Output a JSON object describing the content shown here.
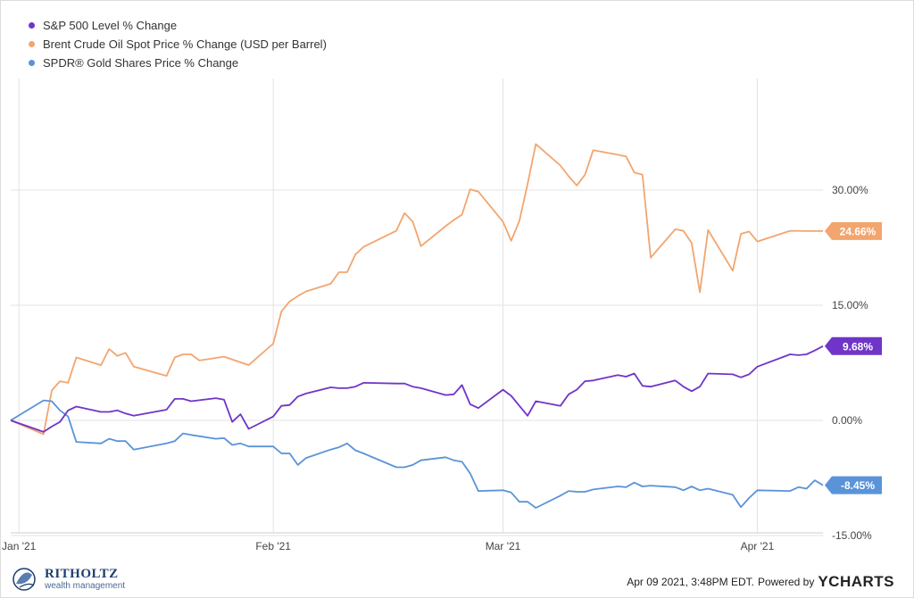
{
  "chart_data": {
    "type": "line",
    "x_type": "date",
    "xlim": [
      "2020-12-31",
      "2021-04-09"
    ],
    "ylim": [
      -15,
      41
    ],
    "grid": {
      "vertical": true,
      "horizontal": true
    },
    "legend_position": "top-left",
    "x_tick_labels": [
      {
        "date": "2021-01-01",
        "label": "Jan '21"
      },
      {
        "date": "2021-02-01",
        "label": "Feb '21"
      },
      {
        "date": "2021-03-01",
        "label": "Mar '21"
      },
      {
        "date": "2021-04-01",
        "label": "Apr '21"
      }
    ],
    "y_tick_labels": [
      {
        "value": 30,
        "label": "30.00%"
      },
      {
        "value": 15,
        "label": "15.00%"
      },
      {
        "value": 0,
        "label": "0.00%"
      },
      {
        "value": -15,
        "label": "-15.00%"
      }
    ],
    "series": [
      {
        "name": "S&P 500 Level % Change",
        "color": "#6f35c8",
        "end_label": "9.68%",
        "points": [
          [
            "2020-12-31",
            0
          ],
          [
            "2021-01-04",
            -1.5
          ],
          [
            "2021-01-05",
            -0.8
          ],
          [
            "2021-01-06",
            -0.2
          ],
          [
            "2021-01-07",
            1.3
          ],
          [
            "2021-01-08",
            1.8
          ],
          [
            "2021-01-11",
            1.1
          ],
          [
            "2021-01-12",
            1.1
          ],
          [
            "2021-01-13",
            1.3
          ],
          [
            "2021-01-14",
            0.9
          ],
          [
            "2021-01-15",
            0.6
          ],
          [
            "2021-01-19",
            1.4
          ],
          [
            "2021-01-20",
            2.8
          ],
          [
            "2021-01-21",
            2.8
          ],
          [
            "2021-01-22",
            2.5
          ],
          [
            "2021-01-25",
            2.9
          ],
          [
            "2021-01-26",
            2.7
          ],
          [
            "2021-01-27",
            -0.2
          ],
          [
            "2021-01-28",
            0.8
          ],
          [
            "2021-01-29",
            -1.1
          ],
          [
            "2021-02-01",
            0.5
          ],
          [
            "2021-02-02",
            1.9
          ],
          [
            "2021-02-03",
            2.0
          ],
          [
            "2021-02-04",
            3.1
          ],
          [
            "2021-02-05",
            3.5
          ],
          [
            "2021-02-08",
            4.3
          ],
          [
            "2021-02-09",
            4.2
          ],
          [
            "2021-02-10",
            4.2
          ],
          [
            "2021-02-11",
            4.4
          ],
          [
            "2021-02-12",
            4.9
          ],
          [
            "2021-02-16",
            4.8
          ],
          [
            "2021-02-17",
            4.8
          ],
          [
            "2021-02-18",
            4.4
          ],
          [
            "2021-02-19",
            4.2
          ],
          [
            "2021-02-22",
            3.3
          ],
          [
            "2021-02-23",
            3.4
          ],
          [
            "2021-02-24",
            4.6
          ],
          [
            "2021-02-25",
            2.1
          ],
          [
            "2021-02-26",
            1.6
          ],
          [
            "2021-03-01",
            4.0
          ],
          [
            "2021-03-02",
            3.2
          ],
          [
            "2021-03-03",
            1.9
          ],
          [
            "2021-03-04",
            0.6
          ],
          [
            "2021-03-05",
            2.5
          ],
          [
            "2021-03-08",
            1.9
          ],
          [
            "2021-03-09",
            3.4
          ],
          [
            "2021-03-10",
            4.0
          ],
          [
            "2021-03-11",
            5.1
          ],
          [
            "2021-03-12",
            5.2
          ],
          [
            "2021-03-15",
            5.9
          ],
          [
            "2021-03-16",
            5.7
          ],
          [
            "2021-03-17",
            6.1
          ],
          [
            "2021-03-18",
            4.5
          ],
          [
            "2021-03-19",
            4.4
          ],
          [
            "2021-03-22",
            5.2
          ],
          [
            "2021-03-23",
            4.4
          ],
          [
            "2021-03-24",
            3.8
          ],
          [
            "2021-03-25",
            4.4
          ],
          [
            "2021-03-26",
            6.1
          ],
          [
            "2021-03-29",
            6.0
          ],
          [
            "2021-03-30",
            5.6
          ],
          [
            "2021-03-31",
            6.0
          ],
          [
            "2021-04-01",
            7.0
          ],
          [
            "2021-04-05",
            8.6
          ],
          [
            "2021-04-06",
            8.5
          ],
          [
            "2021-04-07",
            8.6
          ],
          [
            "2021-04-08",
            9.1
          ],
          [
            "2021-04-09",
            9.68
          ]
        ]
      },
      {
        "name": "Brent Crude Oil Spot Price % Change (USD per Barrel)",
        "color": "#f2a56e",
        "end_label": "24.66%",
        "points": [
          [
            "2020-12-31",
            0
          ],
          [
            "2021-01-04",
            -1.8
          ],
          [
            "2021-01-05",
            3.9
          ],
          [
            "2021-01-06",
            5.1
          ],
          [
            "2021-01-07",
            4.9
          ],
          [
            "2021-01-08",
            8.2
          ],
          [
            "2021-01-11",
            7.2
          ],
          [
            "2021-01-12",
            9.3
          ],
          [
            "2021-01-13",
            8.4
          ],
          [
            "2021-01-14",
            8.8
          ],
          [
            "2021-01-15",
            7.0
          ],
          [
            "2021-01-19",
            5.8
          ],
          [
            "2021-01-20",
            8.2
          ],
          [
            "2021-01-21",
            8.6
          ],
          [
            "2021-01-22",
            8.6
          ],
          [
            "2021-01-23",
            7.8
          ],
          [
            "2021-01-26",
            8.3
          ],
          [
            "2021-01-29",
            7.2
          ],
          [
            "2021-02-01",
            10.0
          ],
          [
            "2021-02-02",
            14.2
          ],
          [
            "2021-02-03",
            15.5
          ],
          [
            "2021-02-04",
            16.2
          ],
          [
            "2021-02-05",
            16.8
          ],
          [
            "2021-02-08",
            17.8
          ],
          [
            "2021-02-09",
            19.3
          ],
          [
            "2021-02-10",
            19.3
          ],
          [
            "2021-02-11",
            21.6
          ],
          [
            "2021-02-12",
            22.6
          ],
          [
            "2021-02-16",
            24.7
          ],
          [
            "2021-02-17",
            27.0
          ],
          [
            "2021-02-18",
            25.9
          ],
          [
            "2021-02-19",
            22.7
          ],
          [
            "2021-02-22",
            25.3
          ],
          [
            "2021-02-23",
            26.1
          ],
          [
            "2021-02-24",
            26.8
          ],
          [
            "2021-02-25",
            30.1
          ],
          [
            "2021-02-26",
            29.8
          ],
          [
            "2021-03-01",
            25.9
          ],
          [
            "2021-03-02",
            23.4
          ],
          [
            "2021-03-03",
            26.0
          ],
          [
            "2021-03-04",
            30.8
          ],
          [
            "2021-03-05",
            36.0
          ],
          [
            "2021-03-08",
            33.2
          ],
          [
            "2021-03-09",
            31.8
          ],
          [
            "2021-03-10",
            30.6
          ],
          [
            "2021-03-11",
            32.0
          ],
          [
            "2021-03-12",
            35.2
          ],
          [
            "2021-03-15",
            34.6
          ],
          [
            "2021-03-16",
            34.4
          ],
          [
            "2021-03-17",
            32.3
          ],
          [
            "2021-03-18",
            32.0
          ],
          [
            "2021-03-19",
            21.2
          ],
          [
            "2021-03-22",
            24.9
          ],
          [
            "2021-03-23",
            24.7
          ],
          [
            "2021-03-24",
            23.1
          ],
          [
            "2021-03-25",
            16.7
          ],
          [
            "2021-03-26",
            24.8
          ],
          [
            "2021-03-29",
            19.5
          ],
          [
            "2021-03-30",
            24.3
          ],
          [
            "2021-03-31",
            24.6
          ],
          [
            "2021-04-01",
            23.3
          ],
          [
            "2021-04-05",
            24.7
          ],
          [
            "2021-04-07",
            24.66
          ],
          [
            "2021-04-09",
            24.66
          ]
        ]
      },
      {
        "name": "SPDR® Gold Shares Price % Change",
        "color": "#5a93d8",
        "end_label": "-8.45%",
        "points": [
          [
            "2020-12-31",
            0
          ],
          [
            "2021-01-04",
            2.6
          ],
          [
            "2021-01-05",
            2.5
          ],
          [
            "2021-01-06",
            1.3
          ],
          [
            "2021-01-07",
            0.5
          ],
          [
            "2021-01-08",
            -2.8
          ],
          [
            "2021-01-11",
            -3.0
          ],
          [
            "2021-01-12",
            -2.4
          ],
          [
            "2021-01-13",
            -2.7
          ],
          [
            "2021-01-14",
            -2.7
          ],
          [
            "2021-01-15",
            -3.8
          ],
          [
            "2021-01-19",
            -3.0
          ],
          [
            "2021-01-20",
            -2.7
          ],
          [
            "2021-01-21",
            -1.7
          ],
          [
            "2021-01-22",
            -1.9
          ],
          [
            "2021-01-25",
            -2.4
          ],
          [
            "2021-01-26",
            -2.3
          ],
          [
            "2021-01-27",
            -3.2
          ],
          [
            "2021-01-28",
            -3.0
          ],
          [
            "2021-01-29",
            -3.4
          ],
          [
            "2021-02-01",
            -3.4
          ],
          [
            "2021-02-02",
            -4.3
          ],
          [
            "2021-02-03",
            -4.3
          ],
          [
            "2021-02-04",
            -5.8
          ],
          [
            "2021-02-05",
            -4.9
          ],
          [
            "2021-02-08",
            -3.8
          ],
          [
            "2021-02-09",
            -3.5
          ],
          [
            "2021-02-10",
            -3.0
          ],
          [
            "2021-02-11",
            -3.9
          ],
          [
            "2021-02-12",
            -4.3
          ],
          [
            "2021-02-16",
            -6.1
          ],
          [
            "2021-02-17",
            -6.1
          ],
          [
            "2021-02-18",
            -5.8
          ],
          [
            "2021-02-19",
            -5.2
          ],
          [
            "2021-02-22",
            -4.8
          ],
          [
            "2021-02-23",
            -5.2
          ],
          [
            "2021-02-24",
            -5.4
          ],
          [
            "2021-02-25",
            -6.9
          ],
          [
            "2021-02-26",
            -9.2
          ],
          [
            "2021-03-01",
            -9.1
          ],
          [
            "2021-03-02",
            -9.4
          ],
          [
            "2021-03-03",
            -10.6
          ],
          [
            "2021-03-04",
            -10.6
          ],
          [
            "2021-03-05",
            -11.4
          ],
          [
            "2021-03-08",
            -9.8
          ],
          [
            "2021-03-09",
            -9.2
          ],
          [
            "2021-03-10",
            -9.3
          ],
          [
            "2021-03-11",
            -9.3
          ],
          [
            "2021-03-12",
            -9.0
          ],
          [
            "2021-03-15",
            -8.6
          ],
          [
            "2021-03-16",
            -8.7
          ],
          [
            "2021-03-17",
            -8.1
          ],
          [
            "2021-03-18",
            -8.6
          ],
          [
            "2021-03-19",
            -8.5
          ],
          [
            "2021-03-22",
            -8.7
          ],
          [
            "2021-03-23",
            -9.1
          ],
          [
            "2021-03-24",
            -8.6
          ],
          [
            "2021-03-25",
            -9.1
          ],
          [
            "2021-03-26",
            -8.9
          ],
          [
            "2021-03-29",
            -9.7
          ],
          [
            "2021-03-30",
            -11.3
          ],
          [
            "2021-03-31",
            -10.1
          ],
          [
            "2021-04-01",
            -9.1
          ],
          [
            "2021-04-05",
            -9.2
          ],
          [
            "2021-04-06",
            -8.7
          ],
          [
            "2021-04-07",
            -8.9
          ],
          [
            "2021-04-08",
            -7.8
          ],
          [
            "2021-04-09",
            -8.45
          ]
        ]
      }
    ]
  },
  "footer": {
    "timestamp": "Apr 09 2021, 3:48PM EDT.",
    "powered_by": "Powered by",
    "ycharts_logo": "YCHARTS"
  },
  "branding": {
    "logo_text": "RITHOLTZ",
    "logo_sub": "wealth management"
  }
}
